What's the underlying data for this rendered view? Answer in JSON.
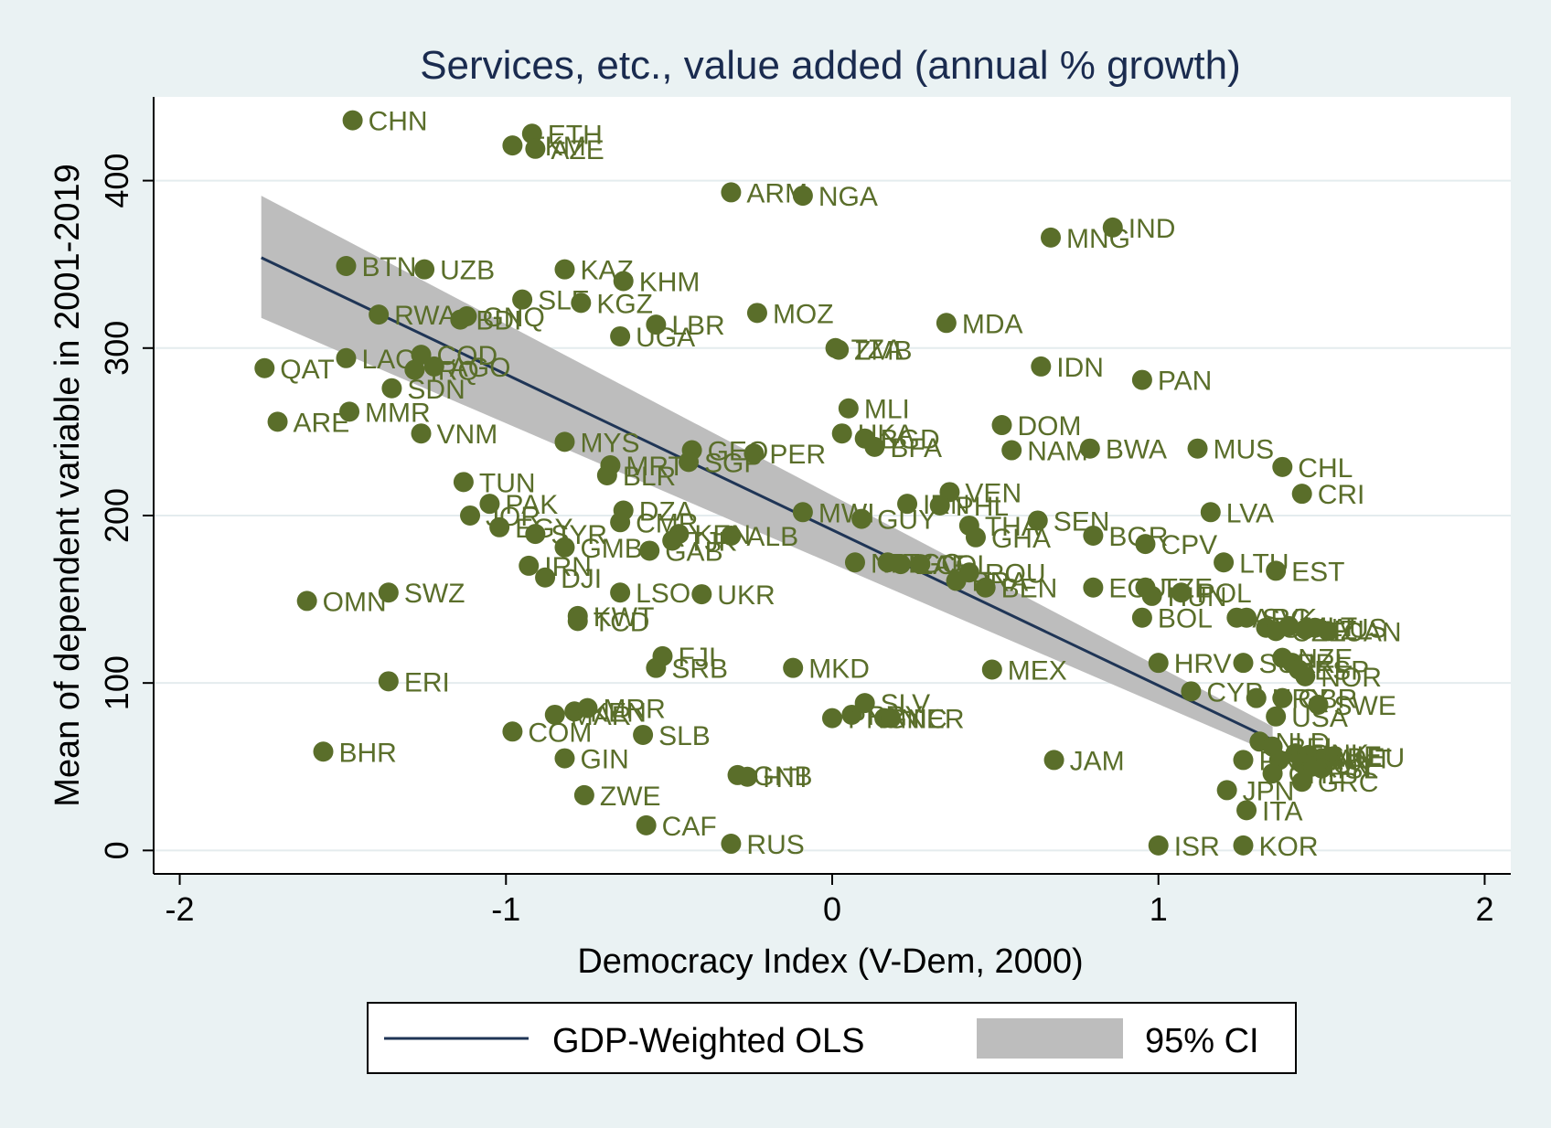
{
  "chart_data": {
    "type": "scatter",
    "title": "Services, etc., value added (annual % growth)",
    "xlabel": "Democracy Index (V-Dem, 2000)",
    "ylabel": "Mean of dependent variable in 2001-2019",
    "xlim": [
      -2.08,
      2.08
    ],
    "ylim": [
      -14,
      450
    ],
    "xticks": [
      -2,
      -1,
      0,
      1,
      2
    ],
    "yticks": [
      0,
      100,
      200,
      300,
      400
    ],
    "grid": "horizontal",
    "colors": {
      "points": "#5a6e2a",
      "fit_line": "#1f3556",
      "ci_band": "#bdbdbd",
      "plot_background": "#ffffff",
      "outer_background": "#eaf2f3"
    },
    "fit": {
      "name": "GDP-Weighted OLS",
      "x": [
        -1.75,
        1.35
      ],
      "y": [
        354,
        66
      ],
      "ci_lower": [
        318,
        58
      ],
      "ci_upper": [
        391,
        74
      ]
    },
    "legend": {
      "position": "bottom",
      "entries": [
        "GDP-Weighted OLS",
        "95% CI"
      ]
    },
    "points": [
      {
        "label": "CHN",
        "x": -1.47,
        "y": 436
      },
      {
        "label": "ETH",
        "x": -0.92,
        "y": 428
      },
      {
        "label": "TKM",
        "x": -0.98,
        "y": 421
      },
      {
        "label": "AZE",
        "x": -0.91,
        "y": 419
      },
      {
        "label": "ARM",
        "x": -0.31,
        "y": 393
      },
      {
        "label": "NGA",
        "x": -0.09,
        "y": 391
      },
      {
        "label": "IND",
        "x": 0.86,
        "y": 372
      },
      {
        "label": "MNG",
        "x": 0.67,
        "y": 366
      },
      {
        "label": "BTN",
        "x": -1.49,
        "y": 349
      },
      {
        "label": "UZB",
        "x": -1.25,
        "y": 347
      },
      {
        "label": "KAZ",
        "x": -0.82,
        "y": 347
      },
      {
        "label": "KHM",
        "x": -0.64,
        "y": 340
      },
      {
        "label": "SLE",
        "x": -0.95,
        "y": 329
      },
      {
        "label": "KGZ",
        "x": -0.77,
        "y": 327
      },
      {
        "label": "RWA",
        "x": -1.39,
        "y": 320
      },
      {
        "label": "BDI",
        "x": -1.14,
        "y": 317
      },
      {
        "label": "GNQ",
        "x": -1.12,
        "y": 319
      },
      {
        "label": "MOZ",
        "x": -0.23,
        "y": 321
      },
      {
        "label": "LBR",
        "x": -0.54,
        "y": 314
      },
      {
        "label": "MDA",
        "x": 0.35,
        "y": 315
      },
      {
        "label": "UGA",
        "x": -0.65,
        "y": 307
      },
      {
        "label": "TZA",
        "x": 0.01,
        "y": 300
      },
      {
        "label": "ZMB",
        "x": 0.02,
        "y": 299
      },
      {
        "label": "LAO",
        "x": -1.49,
        "y": 294
      },
      {
        "label": "COD",
        "x": -1.26,
        "y": 296
      },
      {
        "label": "QAT",
        "x": -1.74,
        "y": 288
      },
      {
        "label": "IRQ",
        "x": -1.28,
        "y": 287
      },
      {
        "label": "AGO",
        "x": -1.22,
        "y": 289
      },
      {
        "label": "IDN",
        "x": 0.64,
        "y": 289
      },
      {
        "label": "PAN",
        "x": 0.95,
        "y": 281
      },
      {
        "label": "SDN",
        "x": -1.35,
        "y": 276
      },
      {
        "label": "MLI",
        "x": 0.05,
        "y": 264
      },
      {
        "label": "MMR",
        "x": -1.48,
        "y": 262
      },
      {
        "label": "ARE",
        "x": -1.7,
        "y": 256
      },
      {
        "label": "DOM",
        "x": 0.52,
        "y": 254
      },
      {
        "label": "VNM",
        "x": -1.26,
        "y": 249
      },
      {
        "label": "UKA",
        "x": 0.03,
        "y": 249
      },
      {
        "label": "BGD",
        "x": 0.1,
        "y": 246
      },
      {
        "label": "BFA",
        "x": 0.13,
        "y": 241
      },
      {
        "label": "MYS",
        "x": -0.82,
        "y": 244
      },
      {
        "label": "GEO",
        "x": -0.43,
        "y": 239
      },
      {
        "label": "PER",
        "x": -0.24,
        "y": 237
      },
      {
        "label": "SGP",
        "x": -0.44,
        "y": 232
      },
      {
        "label": "MRT",
        "x": -0.68,
        "y": 230
      },
      {
        "label": "NAM",
        "x": 0.55,
        "y": 239
      },
      {
        "label": "BWA",
        "x": 0.79,
        "y": 240
      },
      {
        "label": "MUS",
        "x": 1.12,
        "y": 240
      },
      {
        "label": "CHL",
        "x": 1.38,
        "y": 229
      },
      {
        "label": "BLR",
        "x": -0.69,
        "y": 224
      },
      {
        "label": "TUN",
        "x": -1.13,
        "y": 220
      },
      {
        "label": "CRI",
        "x": 1.44,
        "y": 213
      },
      {
        "label": "VEN",
        "x": 0.36,
        "y": 214
      },
      {
        "label": "IRN",
        "x": 0.23,
        "y": 207
      },
      {
        "label": "PHL",
        "x": 0.33,
        "y": 206
      },
      {
        "label": "PAK",
        "x": -1.05,
        "y": 207
      },
      {
        "label": "DZA",
        "x": -0.64,
        "y": 203
      },
      {
        "label": "LVA",
        "x": 1.16,
        "y": 202
      },
      {
        "label": "MWI",
        "x": -0.09,
        "y": 202
      },
      {
        "label": "GUY",
        "x": 0.09,
        "y": 198
      },
      {
        "label": "JOR",
        "x": -1.11,
        "y": 200
      },
      {
        "label": "CMR",
        "x": -0.65,
        "y": 196
      },
      {
        "label": "SEN",
        "x": 0.63,
        "y": 197
      },
      {
        "label": "THA",
        "x": 0.42,
        "y": 194
      },
      {
        "label": "EGY",
        "x": -1.02,
        "y": 193
      },
      {
        "label": "SYR",
        "x": -0.91,
        "y": 189
      },
      {
        "label": "KEN",
        "x": -0.47,
        "y": 189
      },
      {
        "label": "ALB",
        "x": -0.31,
        "y": 188
      },
      {
        "label": "TJK",
        "x": -0.49,
        "y": 185
      },
      {
        "label": "GHA",
        "x": 0.44,
        "y": 187
      },
      {
        "label": "BGR",
        "x": 0.8,
        "y": 188
      },
      {
        "label": "CPV",
        "x": 0.96,
        "y": 183
      },
      {
        "label": "GMB",
        "x": -0.82,
        "y": 181
      },
      {
        "label": "GAB",
        "x": -0.56,
        "y": 179
      },
      {
        "label": "LTU",
        "x": 1.2,
        "y": 172
      },
      {
        "label": "EST",
        "x": 1.36,
        "y": 167
      },
      {
        "label": "IRN",
        "x": -0.93,
        "y": 170
      },
      {
        "label": "NPL",
        "x": 0.07,
        "y": 172
      },
      {
        "label": "TGO",
        "x": 0.17,
        "y": 172
      },
      {
        "label": "ZAF",
        "x": 0.21,
        "y": 171
      },
      {
        "label": "COL",
        "x": 0.27,
        "y": 171
      },
      {
        "label": "ROU",
        "x": 0.42,
        "y": 166
      },
      {
        "label": "DJI",
        "x": -0.88,
        "y": 163
      },
      {
        "label": "BRA",
        "x": 0.38,
        "y": 161
      },
      {
        "label": "BEN",
        "x": 0.47,
        "y": 157
      },
      {
        "label": "ECU",
        "x": 0.8,
        "y": 157
      },
      {
        "label": "TZE",
        "x": 0.96,
        "y": 157
      },
      {
        "label": "HUN",
        "x": 0.98,
        "y": 152
      },
      {
        "label": "POL",
        "x": 1.07,
        "y": 154
      },
      {
        "label": "OMN",
        "x": -1.61,
        "y": 149
      },
      {
        "label": "SWZ",
        "x": -1.36,
        "y": 154
      },
      {
        "label": "LSO",
        "x": -0.65,
        "y": 154
      },
      {
        "label": "UKR",
        "x": -0.4,
        "y": 153
      },
      {
        "label": "BOL",
        "x": 0.95,
        "y": 139
      },
      {
        "label": "ARG",
        "x": 1.24,
        "y": 139
      },
      {
        "label": "SVK",
        "x": 1.27,
        "y": 139
      },
      {
        "label": "KWT",
        "x": -0.78,
        "y": 140
      },
      {
        "label": "TCD",
        "x": -0.78,
        "y": 137
      },
      {
        "label": "SVN",
        "x": 1.33,
        "y": 133
      },
      {
        "label": "CZE",
        "x": 1.36,
        "y": 131
      },
      {
        "label": "MLT",
        "x": 1.4,
        "y": 134
      },
      {
        "label": "NZL",
        "x": 1.45,
        "y": 132
      },
      {
        "label": "AUS",
        "x": 1.48,
        "y": 133
      },
      {
        "label": "CAN",
        "x": 1.52,
        "y": 131
      },
      {
        "label": "FJI",
        "x": -0.52,
        "y": 116
      },
      {
        "label": "SRB",
        "x": -0.54,
        "y": 109
      },
      {
        "label": "MKD",
        "x": -0.12,
        "y": 109
      },
      {
        "label": "HRV",
        "x": 1.0,
        "y": 112
      },
      {
        "label": "SUR",
        "x": 1.26,
        "y": 112
      },
      {
        "label": "NZE",
        "x": 1.38,
        "y": 115
      },
      {
        "label": "IRL",
        "x": 1.41,
        "y": 112
      },
      {
        "label": "ESP",
        "x": 1.43,
        "y": 108
      },
      {
        "label": "NOR",
        "x": 1.45,
        "y": 104
      },
      {
        "label": "ERI",
        "x": -1.36,
        "y": 101
      },
      {
        "label": "MEX",
        "x": 0.49,
        "y": 108
      },
      {
        "label": "CYP",
        "x": 1.1,
        "y": 95
      },
      {
        "label": "URY",
        "x": 1.3,
        "y": 91
      },
      {
        "label": "GBR",
        "x": 1.38,
        "y": 91
      },
      {
        "label": "SWE",
        "x": 1.49,
        "y": 87
      },
      {
        "label": "USA",
        "x": 1.36,
        "y": 80
      },
      {
        "label": "KEN",
        "x": -0.79,
        "y": 83
      },
      {
        "label": "MRR",
        "x": -0.75,
        "y": 85
      },
      {
        "label": "MAR",
        "x": -0.85,
        "y": 81
      },
      {
        "label": "SLV",
        "x": 0.1,
        "y": 88
      },
      {
        "label": "PRY",
        "x": 0.06,
        "y": 81
      },
      {
        "label": "NIC",
        "x": 0.16,
        "y": 79
      },
      {
        "label": "NER",
        "x": 0.18,
        "y": 79
      },
      {
        "label": "PNG",
        "x": 0.0,
        "y": 79
      },
      {
        "label": "COM",
        "x": -0.98,
        "y": 71
      },
      {
        "label": "SLB",
        "x": -0.58,
        "y": 69
      },
      {
        "label": "NLD",
        "x": 1.31,
        "y": 65
      },
      {
        "label": "BEL",
        "x": 1.35,
        "y": 62
      },
      {
        "label": "DNK",
        "x": 1.42,
        "y": 58
      },
      {
        "label": "CHE",
        "x": 1.46,
        "y": 57
      },
      {
        "label": "AUT",
        "x": 1.5,
        "y": 55
      },
      {
        "label": "DEU",
        "x": 1.53,
        "y": 56
      },
      {
        "label": "LUX",
        "x": 1.44,
        "y": 52
      },
      {
        "label": "FIN",
        "x": 1.47,
        "y": 50
      },
      {
        "label": "ISL",
        "x": 1.5,
        "y": 49
      },
      {
        "label": "FRA",
        "x": 1.37,
        "y": 54
      },
      {
        "label": "PRT",
        "x": 1.26,
        "y": 54
      },
      {
        "label": "BHR",
        "x": -1.56,
        "y": 59
      },
      {
        "label": "JAM",
        "x": 0.68,
        "y": 54
      },
      {
        "label": "GIN",
        "x": -0.82,
        "y": 55
      },
      {
        "label": "CHE",
        "x": 1.35,
        "y": 46
      },
      {
        "label": "GRC",
        "x": 1.44,
        "y": 41
      },
      {
        "label": "GNB",
        "x": -0.29,
        "y": 45
      },
      {
        "label": "HTI",
        "x": -0.26,
        "y": 44
      },
      {
        "label": "JPN",
        "x": 1.21,
        "y": 36
      },
      {
        "label": "ZWE",
        "x": -0.76,
        "y": 33
      },
      {
        "label": "ITA",
        "x": 1.27,
        "y": 24
      },
      {
        "label": "CAF",
        "x": -0.57,
        "y": 15
      },
      {
        "label": "RUS",
        "x": -0.31,
        "y": 4
      },
      {
        "label": "ISR",
        "x": 1.0,
        "y": 3
      },
      {
        "label": "KOR",
        "x": 1.26,
        "y": 3
      }
    ]
  }
}
